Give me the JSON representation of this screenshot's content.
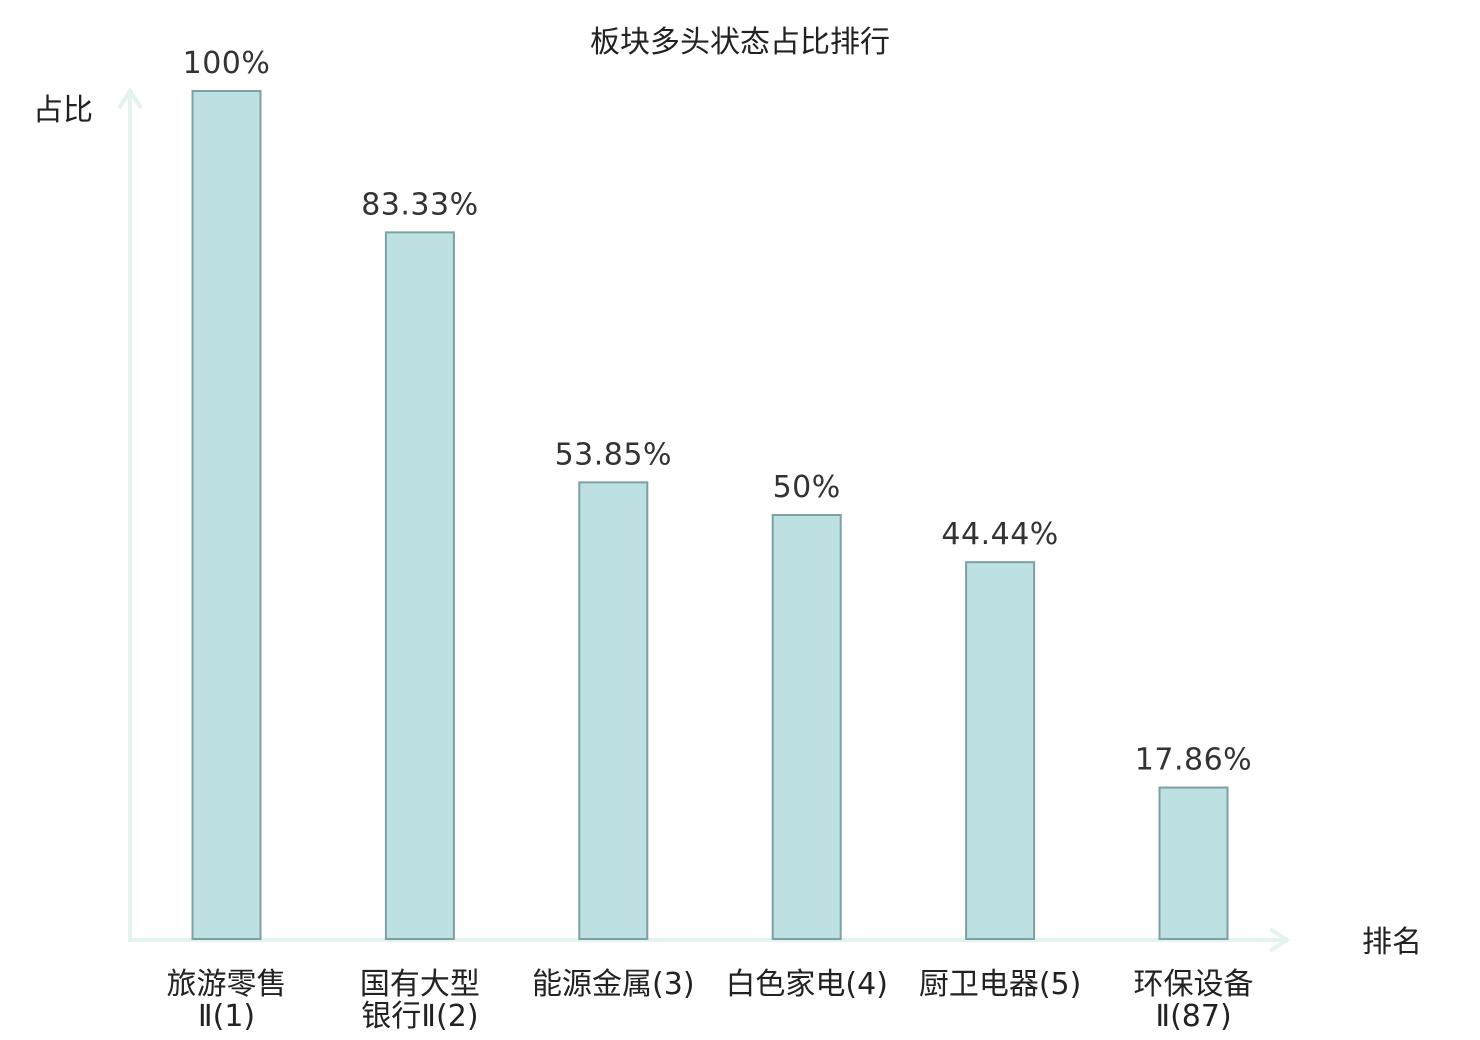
{
  "chart_data": {
    "type": "bar",
    "title": "板块多头状态占比排行",
    "ylabel": "占比",
    "xlabel": "排名",
    "categories": [
      [
        "旅游零售",
        "Ⅱ(1)"
      ],
      [
        "国有大型",
        "银行Ⅱ(2)"
      ],
      [
        "能源金属(3)"
      ],
      [
        "白色家电(4)"
      ],
      [
        "厨卫电器(5)"
      ],
      [
        "环保设备",
        "Ⅱ(87)"
      ]
    ],
    "values": [
      100,
      83.33,
      53.85,
      50,
      44.44,
      17.86
    ],
    "value_labels": [
      "100%",
      "83.33%",
      "53.85%",
      "50%",
      "44.44%",
      "17.86%"
    ],
    "highlight_index": 5,
    "ylim": [
      0,
      100
    ],
    "grid": false,
    "colors": {
      "bar_fill": "#bde0e2",
      "bar_stroke": "#7fa0a3",
      "axis": "#e2f3f0",
      "highlight_text": "#e0191b",
      "text": "#222222"
    }
  }
}
